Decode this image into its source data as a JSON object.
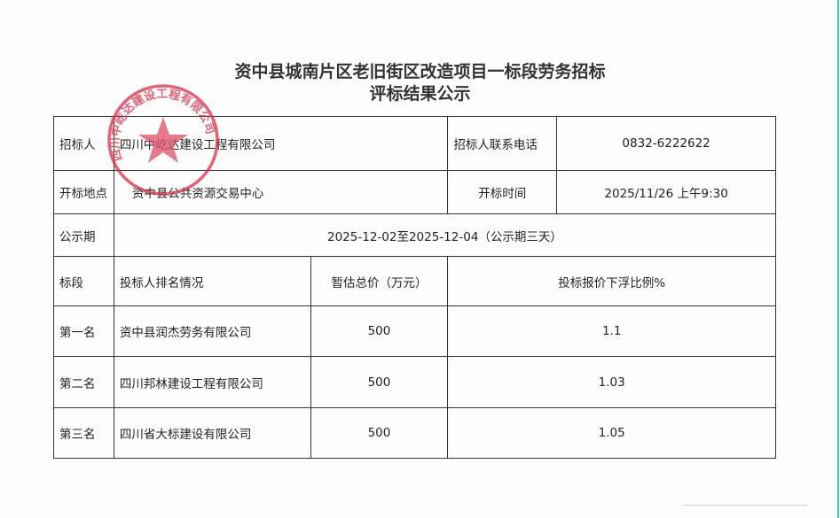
{
  "title": {
    "line1": "资中县城南片区老旧街区改造项目一标段劳务招标",
    "line2": "评标结果公示"
  },
  "info": {
    "tenderer_label": "招标人",
    "tenderer": "四川中屹达建设工程有限公司",
    "phone_label": "招标人联系电话",
    "phone": "0832-6222622",
    "location_label": "开标地点",
    "location": "资中县公共资源交易中心",
    "time_label": "开标时间",
    "time": "2025/11/26 上午9:30",
    "period_label": "公示期",
    "period": "2025-12-02至2025-12-04（公示期三天）"
  },
  "headers": {
    "section": "标段",
    "bidder": "投标人排名情况",
    "price": "暂估总价（万元）",
    "ratio": "投标报价下浮比例%"
  },
  "rows": [
    {
      "rank": "第一名",
      "bidder": "资中县润杰劳务有限公司",
      "price": "500",
      "ratio": "1.1"
    },
    {
      "rank": "第二名",
      "bidder": "四川邦林建设工程有限公司",
      "price": "500",
      "ratio": "1.03"
    },
    {
      "rank": "第三名",
      "bidder": "四川省大标建设有限公司",
      "price": "500",
      "ratio": "1.05"
    }
  ],
  "stamp": {
    "text": "四川中屹达建设工程有限公司",
    "color": "#d9304a"
  }
}
